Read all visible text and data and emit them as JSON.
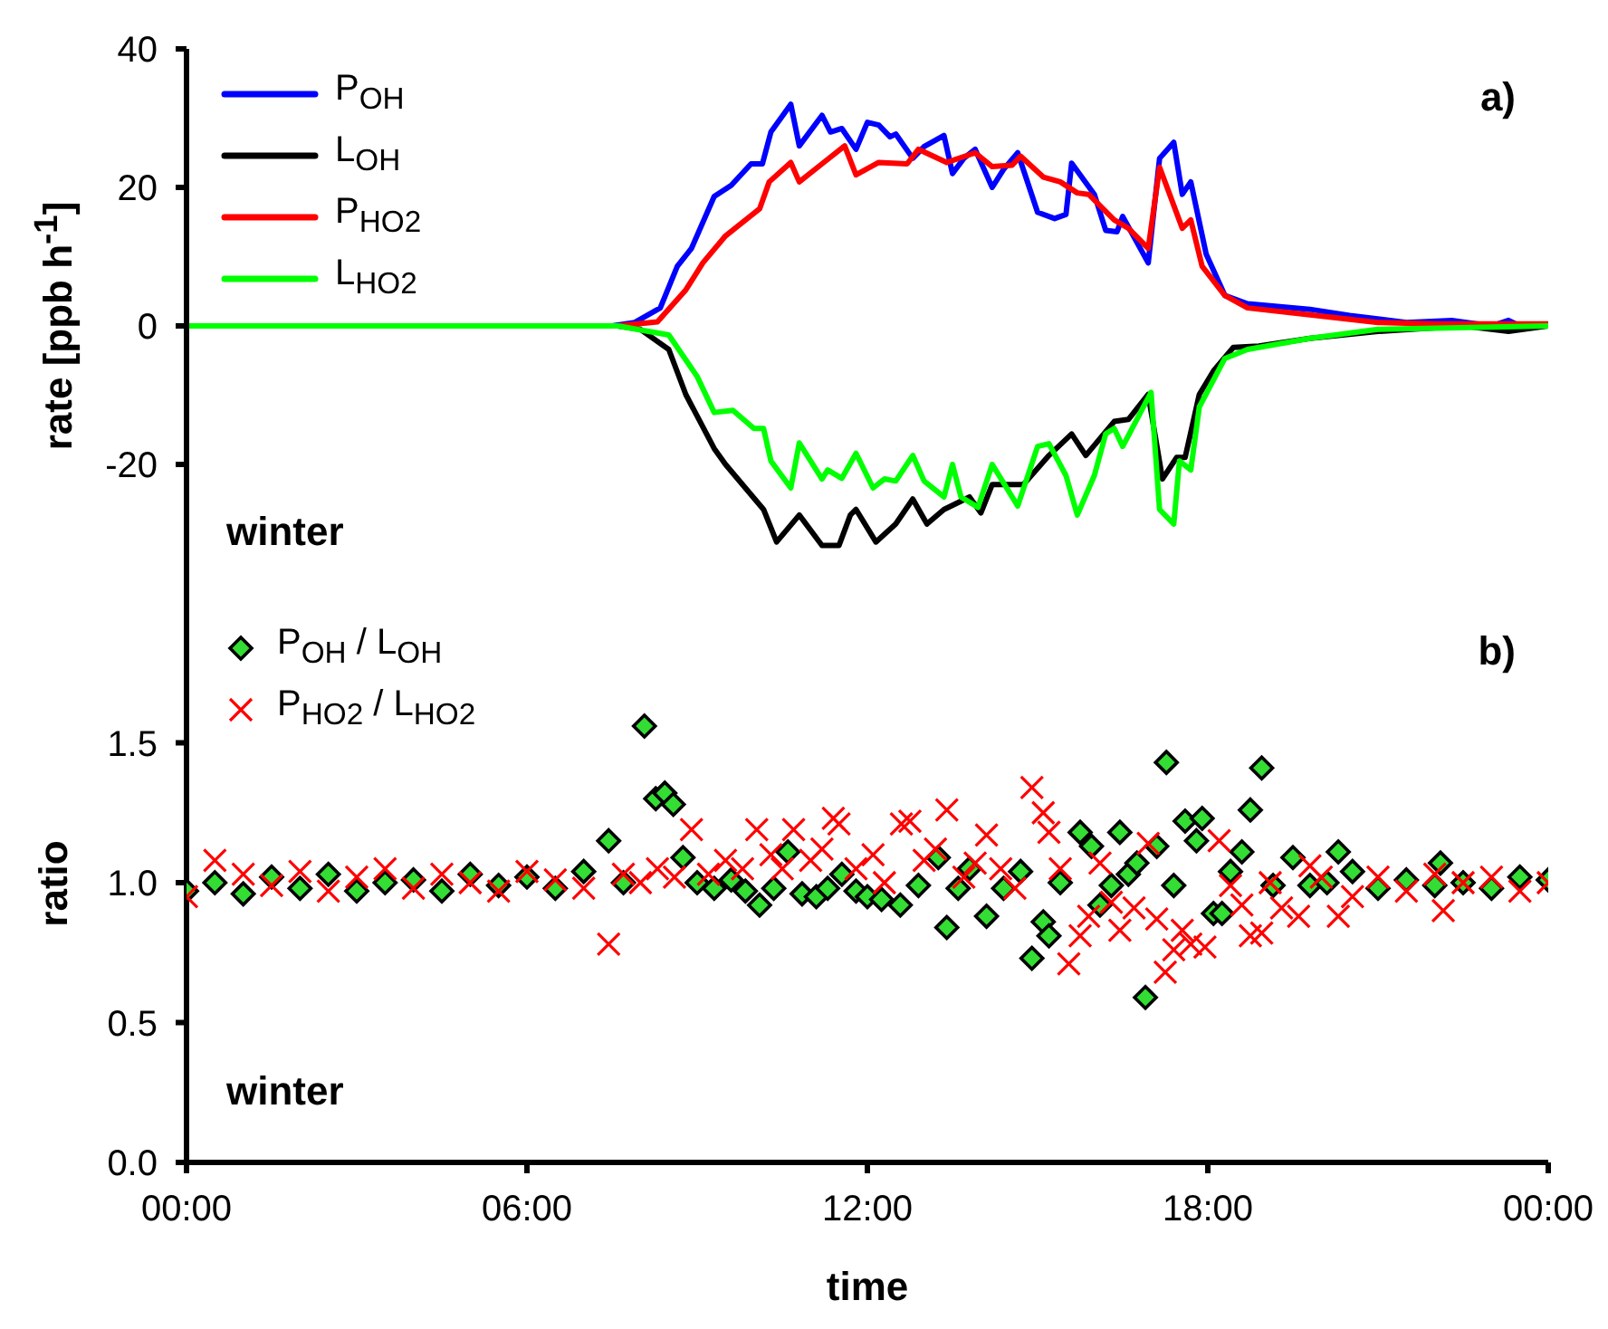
{
  "chart_data": [
    {
      "type": "line",
      "ylabel": "rate [ppb h$^{-1}$]",
      "annotations": [
        "a)",
        "winter"
      ],
      "xlim": [
        0,
        24
      ],
      "ylim": [
        -40,
        40
      ],
      "yticks": [
        -20,
        0,
        20,
        40
      ],
      "tick_labels": "y",
      "grid": false,
      "legend": "top left",
      "marker": "none",
      "line_style": "solid",
      "series": [
        {
          "name": "P$_{OH}$",
          "color": "#0000ff",
          "x": [
            0,
            7.5,
            7.9,
            8.35,
            8.65,
            8.9,
            9.3,
            9.6,
            9.95,
            10.15,
            10.3,
            10.65,
            10.8,
            11.2,
            11.35,
            11.55,
            11.8,
            12.0,
            12.2,
            12.4,
            12.5,
            12.8,
            13.0,
            13.35,
            13.5,
            13.7,
            13.9,
            14.2,
            14.4,
            14.65,
            15.0,
            15.3,
            15.5,
            15.6,
            16.0,
            16.2,
            16.4,
            16.5,
            16.95,
            17.15,
            17.4,
            17.55,
            17.7,
            17.97,
            18.3,
            18.7,
            19.8,
            20.5,
            21.5,
            22.3,
            23.0,
            23.3,
            23.5,
            24
          ],
          "values": [
            0,
            0,
            0.5,
            2.6,
            8.6,
            11.2,
            18.7,
            20.3,
            23.4,
            23.4,
            28,
            32,
            26,
            30.4,
            28,
            28.5,
            25.5,
            29.4,
            29,
            27.3,
            27.7,
            24.2,
            25.9,
            27.5,
            22,
            24.2,
            25.5,
            20,
            22.6,
            25,
            16.4,
            15.5,
            16.1,
            23.5,
            19,
            13.8,
            13.6,
            15.8,
            9.1,
            24.2,
            26.5,
            19,
            20.8,
            10.4,
            4.4,
            3.2,
            2.4,
            1.5,
            0.5,
            0.8,
            0,
            0.8,
            0,
            0
          ]
        },
        {
          "name": "L$_{OH}$",
          "color": "#000000",
          "x": [
            0,
            7.6,
            8.0,
            8.5,
            8.8,
            9.3,
            9.5,
            9.85,
            10.17,
            10.4,
            10.8,
            11.2,
            11.5,
            11.7,
            11.8,
            12.15,
            12.5,
            12.8,
            13.05,
            13.35,
            13.8,
            14.0,
            14.2,
            14.6,
            14.75,
            15.2,
            15.6,
            15.85,
            16.35,
            16.6,
            16.95,
            17.2,
            17.45,
            17.6,
            17.85,
            18.1,
            18.45,
            18.9,
            19.8,
            21,
            22.5,
            23.3,
            24
          ],
          "values": [
            0,
            0,
            -0.5,
            -3.4,
            -9.9,
            -17.7,
            -20,
            -23.4,
            -26.5,
            -31.2,
            -27.3,
            -31.7,
            -31.7,
            -27.3,
            -26.5,
            -31.2,
            -28.6,
            -25,
            -28.6,
            -26.5,
            -24.7,
            -27,
            -22.9,
            -22.9,
            -22.9,
            -18.7,
            -15.6,
            -18.7,
            -13.8,
            -13.5,
            -9.9,
            -22.1,
            -19,
            -19,
            -9.9,
            -6.5,
            -3.1,
            -2.9,
            -1.8,
            -0.8,
            0,
            -0.8,
            0
          ]
        },
        {
          "name": "P$_{HO2}$",
          "color": "#ff0000",
          "x": [
            0,
            7.6,
            8.3,
            8.8,
            9.1,
            9.5,
            10.1,
            10.27,
            10.65,
            10.8,
            11.2,
            11.6,
            11.8,
            12.2,
            12.7,
            12.9,
            13.4,
            13.9,
            14.2,
            14.55,
            14.7,
            15.1,
            15.4,
            15.7,
            15.9,
            16.35,
            16.6,
            16.95,
            17.15,
            17.55,
            17.7,
            17.9,
            18.3,
            18.7,
            19.8,
            21,
            22,
            24
          ],
          "values": [
            0,
            0,
            0.6,
            5.2,
            9.1,
            13,
            16.9,
            20.8,
            23.6,
            20.8,
            23.4,
            26,
            21.8,
            23.6,
            23.4,
            25.5,
            23.6,
            25,
            23,
            23.2,
            24.5,
            21.5,
            20.8,
            19.2,
            19,
            15.3,
            14.1,
            11.2,
            22.9,
            14.1,
            15.3,
            8.6,
            4.4,
            2.6,
            1.6,
            0.5,
            0.3,
            0.3
          ]
        },
        {
          "name": "L$_{HO2}$",
          "color": "#00ff00",
          "x": [
            0,
            7.6,
            8.5,
            9.0,
            9.3,
            9.63,
            10.0,
            10.17,
            10.3,
            10.65,
            10.8,
            11.2,
            11.3,
            11.55,
            11.8,
            12.1,
            12.3,
            12.5,
            12.8,
            13.0,
            13.35,
            13.5,
            13.65,
            13.95,
            14.2,
            14.65,
            15.0,
            15.2,
            15.5,
            15.7,
            16.0,
            16.2,
            16.35,
            16.5,
            17.0,
            17.15,
            17.4,
            17.5,
            17.7,
            17.85,
            18.3,
            18.7,
            19.8,
            21,
            24
          ],
          "values": [
            0,
            0,
            -1.3,
            -7.3,
            -12.5,
            -12.2,
            -14.8,
            -14.8,
            -19.5,
            -23.4,
            -16.9,
            -22.1,
            -20.8,
            -22,
            -18.4,
            -23.4,
            -22.1,
            -22.4,
            -18.7,
            -22.4,
            -24.7,
            -20,
            -24.7,
            -26.2,
            -20,
            -26,
            -17.4,
            -17,
            -21.6,
            -27.3,
            -21.6,
            -15.6,
            -14.8,
            -17.4,
            -9.6,
            -26.5,
            -28.6,
            -19.5,
            -20.8,
            -11.7,
            -4.7,
            -3.4,
            -1.8,
            -0.5,
            0
          ]
        }
      ]
    },
    {
      "type": "scatter",
      "xlabel": "time",
      "ylabel": "ratio",
      "annotations": [
        "b)",
        "winter"
      ],
      "xlim": [
        0,
        24
      ],
      "xticks": [
        {
          "value": 0,
          "label": "00:00"
        },
        {
          "value": 6,
          "label": "06:00"
        },
        {
          "value": 12,
          "label": "12:00"
        },
        {
          "value": 18,
          "label": "18:00"
        },
        {
          "value": 24,
          "label": "00:00"
        }
      ],
      "ylim": [
        0,
        2
      ],
      "yticks": [
        {
          "value": 0,
          "label": "0.0"
        },
        0.5,
        {
          "value": 1,
          "label": "1.0"
        },
        1.5
      ],
      "grid": false,
      "legend": "top left",
      "series": [
        {
          "name": "P$_{OH}$ / L$_{OH}$",
          "color": "#33dd33",
          "marker": "diamond",
          "x": [
            0,
            0.5,
            1,
            1.5,
            2,
            2.5,
            3,
            3.5,
            4,
            4.5,
            5,
            5.5,
            6,
            6.5,
            7,
            7.44,
            7.7,
            8.07,
            8.27,
            8.43,
            8.58,
            8.75,
            9.0,
            9.3,
            9.6,
            9.85,
            10.1,
            10.35,
            10.6,
            10.85,
            11.1,
            11.3,
            11.55,
            11.8,
            12.0,
            12.25,
            12.58,
            12.9,
            13.25,
            13.4,
            13.6,
            13.8,
            14.1,
            14.4,
            14.7,
            14.9,
            15.1,
            15.2,
            15.4,
            15.75,
            15.95,
            16.1,
            16.3,
            16.45,
            16.6,
            16.75,
            16.9,
            17.1,
            17.27,
            17.4,
            17.6,
            17.8,
            17.9,
            18.1,
            18.25,
            18.4,
            18.6,
            18.75,
            18.95,
            19.15,
            19.5,
            19.8,
            20.1,
            20.3,
            20.55,
            21,
            21.5,
            22,
            22.1,
            22.5,
            23,
            23.5,
            24
          ],
          "values": [
            0.97,
            1.0,
            0.96,
            1.02,
            0.98,
            1.03,
            0.97,
            1.0,
            1.01,
            0.97,
            1.03,
            0.99,
            1.02,
            0.98,
            1.04,
            1.15,
            1.0,
            1.56,
            1.3,
            1.32,
            1.28,
            1.09,
            1.0,
            0.98,
            1.01,
            0.97,
            0.92,
            0.98,
            1.11,
            0.96,
            0.95,
            0.98,
            1.03,
            0.97,
            0.95,
            0.94,
            0.92,
            0.99,
            1.09,
            0.84,
            0.98,
            1.05,
            0.88,
            0.98,
            1.04,
            0.73,
            0.86,
            0.81,
            1.0,
            1.18,
            1.13,
            0.92,
            0.99,
            1.18,
            1.03,
            1.07,
            0.59,
            1.13,
            1.43,
            0.99,
            1.22,
            1.15,
            1.23,
            0.89,
            0.89,
            1.04,
            1.11,
            1.26,
            1.41,
            0.99,
            1.09,
            0.99,
            1.0,
            1.11,
            1.04,
            0.98,
            1.01,
            0.99,
            1.07,
            1.0,
            0.98,
            1.02,
            1.01
          ]
        },
        {
          "name": "P$_{HO2}$ / L$_{HO2}$",
          "color": "#ff0000",
          "marker": "cross",
          "x": [
            0,
            0.5,
            1,
            1.5,
            2,
            2.5,
            3,
            3.5,
            4,
            4.5,
            5,
            5.5,
            6,
            6.5,
            7,
            7.44,
            7.7,
            8.0,
            8.3,
            8.6,
            8.9,
            9.2,
            9.5,
            9.8,
            10.05,
            10.3,
            10.5,
            10.7,
            11.0,
            11.2,
            11.4,
            11.5,
            11.8,
            12.1,
            12.3,
            12.6,
            12.75,
            13.0,
            13.2,
            13.4,
            13.7,
            13.9,
            14.1,
            14.35,
            14.6,
            14.9,
            15.1,
            15.2,
            15.4,
            15.55,
            15.75,
            15.9,
            16.1,
            16.3,
            16.45,
            16.7,
            16.95,
            17.1,
            17.25,
            17.4,
            17.55,
            17.7,
            17.95,
            18.2,
            18.4,
            18.6,
            18.75,
            18.95,
            19.1,
            19.3,
            19.6,
            19.8,
            20.0,
            20.3,
            20.55,
            21,
            21.5,
            22,
            22.15,
            22.5,
            23,
            23.5,
            24
          ],
          "values": [
            0.95,
            1.08,
            1.03,
            0.99,
            1.04,
            0.97,
            1.02,
            1.05,
            0.98,
            1.03,
            1.0,
            0.97,
            1.04,
            1.01,
            0.98,
            0.78,
            1.03,
            1.0,
            1.05,
            1.02,
            1.19,
            1.03,
            1.08,
            1.05,
            1.19,
            1.1,
            1.05,
            1.19,
            1.08,
            1.12,
            1.23,
            1.21,
            1.05,
            1.1,
            1.0,
            1.21,
            1.22,
            1.08,
            1.12,
            1.26,
            1.02,
            1.07,
            1.17,
            1.05,
            0.98,
            1.34,
            1.25,
            1.18,
            1.05,
            0.71,
            0.81,
            0.88,
            1.07,
            0.93,
            0.83,
            0.91,
            1.14,
            0.87,
            0.68,
            0.76,
            0.83,
            0.78,
            0.77,
            1.15,
            0.99,
            0.92,
            0.81,
            0.82,
            1.0,
            0.91,
            0.88,
            1.06,
            1.02,
            0.88,
            0.95,
            1.02,
            0.97,
            1.03,
            0.9,
            1.0,
            1.02,
            0.97,
            1.0
          ]
        }
      ]
    }
  ]
}
